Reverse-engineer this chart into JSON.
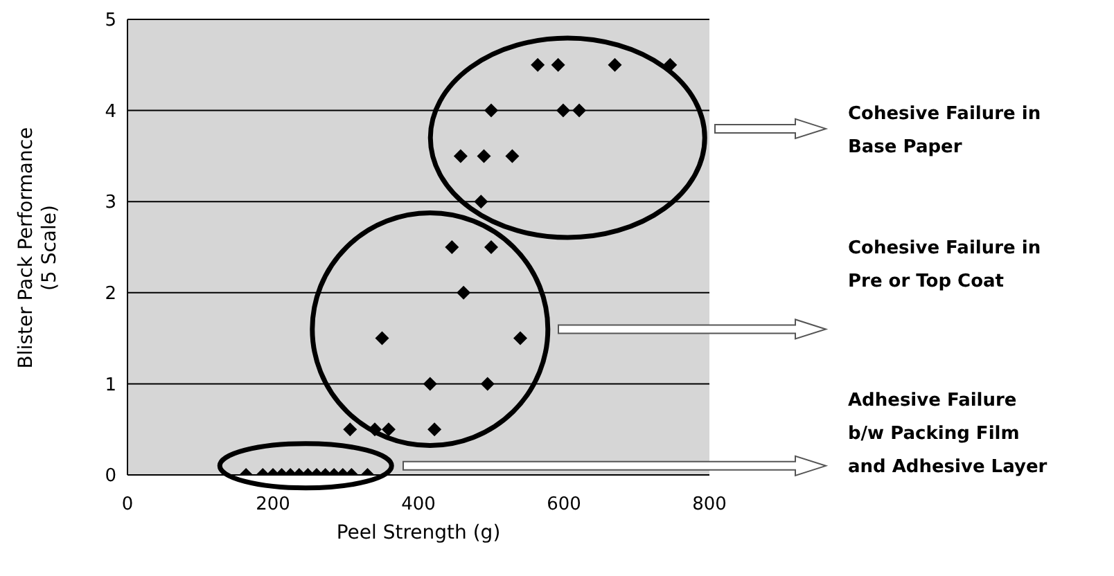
{
  "chart_data": {
    "type": "scatter",
    "xlabel": "Peel Strength (g)",
    "ylabel": "Blister Pack Performance (5 Scale)",
    "annotations": [
      "Cohesive Failure in Base Paper",
      "Cohesive Failure in Pre or Top Coat",
      "Adhesive Failure b/w Packing Film and Adhesive Layer"
    ],
    "series": [
      {
        "color": "#000000",
        "x": [
          564,
          592,
          670,
          746,
          500,
          599,
          621,
          458,
          490,
          529,
          486,
          446,
          500,
          462,
          350,
          540,
          416,
          495,
          306,
          340,
          359,
          422,
          163,
          186,
          200,
          212,
          224,
          236,
          248,
          260,
          272,
          284,
          296,
          308,
          330
        ],
        "values": [
          4.5,
          4.5,
          4.5,
          4.5,
          4,
          4,
          4,
          3.5,
          3.5,
          3.5,
          3,
          2.5,
          2.5,
          2,
          1.5,
          1.5,
          1,
          1,
          0.5,
          0.5,
          0.5,
          0.5,
          0,
          0,
          0,
          0,
          0,
          0,
          0,
          0,
          0,
          0,
          0,
          0,
          0
        ]
      }
    ],
    "xlim": [
      0,
      800
    ],
    "xticks": [
      0,
      200,
      400,
      600,
      800
    ],
    "ylim": [
      0,
      5
    ],
    "yticks": [
      0,
      1,
      2,
      3,
      4,
      5
    ],
    "grid": "y",
    "legend": false,
    "marker": "diamond"
  }
}
